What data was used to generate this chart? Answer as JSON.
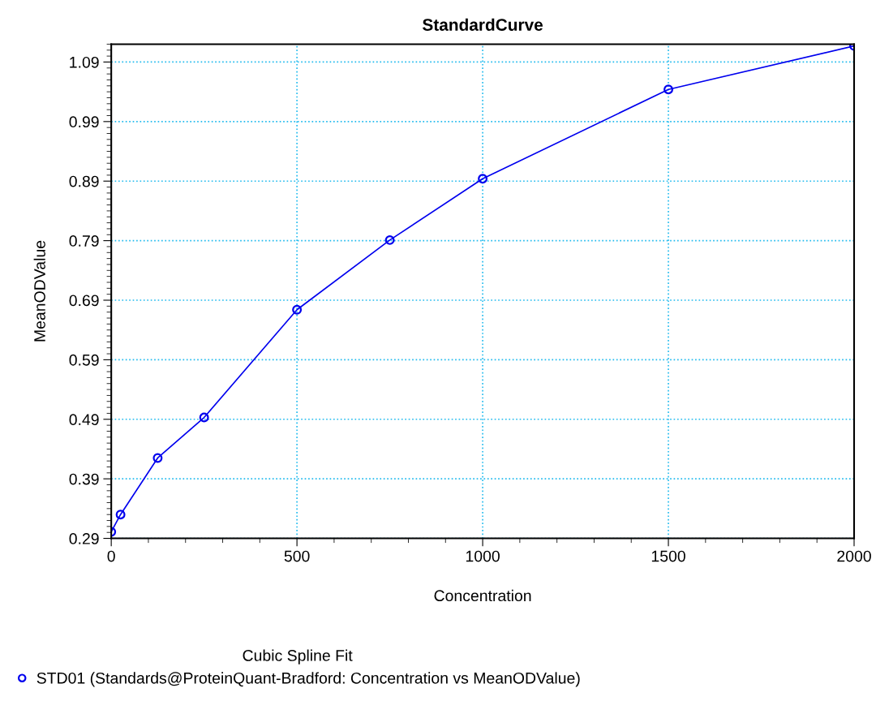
{
  "chart_data": {
    "type": "line",
    "title": "StandardCurve",
    "xlabel": "Concentration",
    "ylabel": "MeanODValue",
    "legend_title": "Cubic Spline Fit",
    "series": [
      {
        "name": "STD01 (Standards@ProteinQuant-Bradford: Concentration vs MeanODValue)",
        "color": "#0000ee",
        "x": [
          0,
          25,
          125,
          250,
          500,
          750,
          1000,
          1500,
          2000
        ],
        "values": [
          0.301,
          0.33,
          0.425,
          0.493,
          0.674,
          0.791,
          0.894,
          1.044,
          1.117
        ]
      }
    ],
    "xlim": [
      0,
      2000
    ],
    "xticks": [
      0,
      500,
      1000,
      1500,
      2000
    ],
    "ylim": [
      0.29,
      1.12
    ],
    "yticks": [
      0.29,
      0.39,
      0.49,
      0.59,
      0.69,
      0.79,
      0.89,
      0.99,
      1.09
    ],
    "grid": true,
    "legend": "bottom",
    "marker": "circle",
    "line_style": "solid"
  }
}
